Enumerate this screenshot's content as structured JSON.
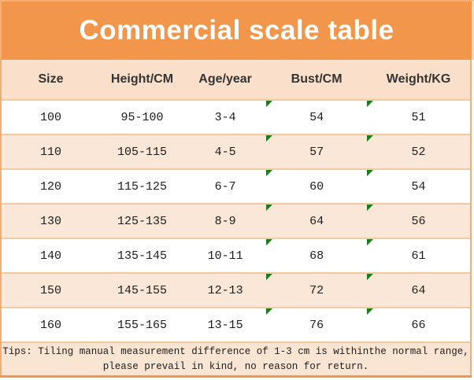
{
  "title": "Commercial scale table",
  "colors": {
    "banner_orange": "#F2964B",
    "header_peach": "#FAE0CB",
    "alt_row_peach": "#FBE7D8",
    "separator_orange": "#F3C9A2",
    "marker_green": "#1E7A1F",
    "title_text": "#FFFFFF",
    "body_text": "#1C1C1C"
  },
  "table": {
    "columns": [
      "Size",
      "Height/CM",
      "Age/year",
      "Bust/CM",
      "Weight/KG"
    ],
    "rows": [
      [
        "100",
        "95-100",
        "3-4",
        "54",
        "51"
      ],
      [
        "110",
        "105-115",
        "4-5",
        "57",
        "52"
      ],
      [
        "120",
        "115-125",
        "6-7",
        "60",
        "54"
      ],
      [
        "130",
        "125-135",
        "8-9",
        "64",
        "56"
      ],
      [
        "140",
        "135-145",
        "10-11",
        "68",
        "61"
      ],
      [
        "150",
        "145-155",
        "12-13",
        "72",
        "64"
      ],
      [
        "160",
        "155-165",
        "13-15",
        "76",
        "66"
      ]
    ],
    "marker_columns": [
      3,
      4
    ]
  },
  "tips": {
    "line1": "Tips: Tiling manual measurement difference of 1-3 cm is withinthe normal range,",
    "line2": "please prevail in kind, no reason for return."
  },
  "chart_data": {
    "type": "table",
    "title": "Commercial scale table",
    "columns": [
      "Size",
      "Height/CM",
      "Age/year",
      "Bust/CM",
      "Weight/KG"
    ],
    "rows": [
      [
        "100",
        "95-100",
        "3-4",
        "54",
        "51"
      ],
      [
        "110",
        "105-115",
        "4-5",
        "57",
        "52"
      ],
      [
        "120",
        "115-125",
        "6-7",
        "60",
        "54"
      ],
      [
        "130",
        "125-135",
        "8-9",
        "64",
        "56"
      ],
      [
        "140",
        "135-145",
        "10-11",
        "68",
        "61"
      ],
      [
        "150",
        "145-155",
        "12-13",
        "72",
        "64"
      ],
      [
        "160",
        "155-165",
        "13-15",
        "76",
        "66"
      ]
    ],
    "footnote": "Tips: Tiling manual measurement difference of 1-3 cm is withinthe normal range, please prevail in kind, no reason for return."
  }
}
